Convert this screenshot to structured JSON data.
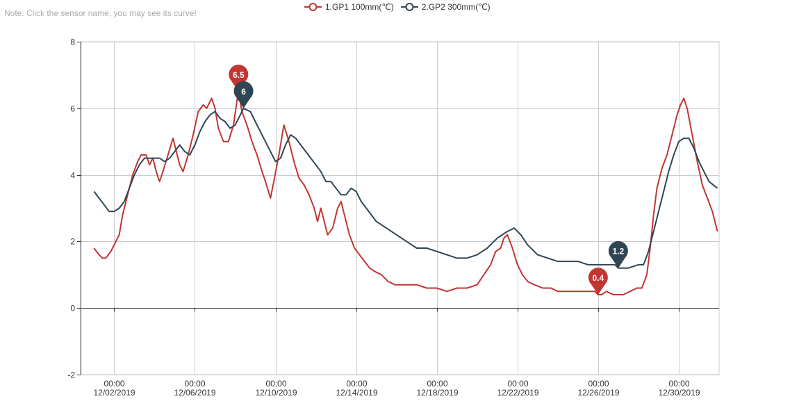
{
  "note": "Note: Click the sensor name, you may see its curve!",
  "legend": {
    "items": [
      {
        "label": "1.GP1 100mm(℃)",
        "color": "#c23531"
      },
      {
        "label": "2.GP2 300mm(℃)",
        "color": "#2f4554"
      }
    ]
  },
  "chart_data": {
    "type": "line",
    "title": "",
    "xlabel": "",
    "ylabel": "",
    "xlim": [
      "11/30/2019 08:00",
      "01/01/2020 00:00"
    ],
    "ylim": [
      -2,
      8
    ],
    "yticks": [
      -2,
      0,
      2,
      4,
      6,
      8
    ],
    "xticks": [
      {
        "date": "12/02/2019 00:00",
        "time": "00:00",
        "day": "12/02/2019"
      },
      {
        "date": "12/06/2019 00:00",
        "time": "00:00",
        "day": "12/06/2019"
      },
      {
        "date": "12/10/2019 00:00",
        "time": "00:00",
        "day": "12/10/2019"
      },
      {
        "date": "12/14/2019 00:00",
        "time": "00:00",
        "day": "12/14/2019"
      },
      {
        "date": "12/18/2019 00:00",
        "time": "00:00",
        "day": "12/18/2019"
      },
      {
        "date": "12/22/2019 00:00",
        "time": "00:00",
        "day": "12/22/2019"
      },
      {
        "date": "12/26/2019 00:00",
        "time": "00:00",
        "day": "12/26/2019"
      },
      {
        "date": "12/30/2019 00:00",
        "time": "00:00",
        "day": "12/30/2019"
      }
    ],
    "grid": true,
    "legend_position": "top-center",
    "series": [
      {
        "name": "1.GP1 100mm(℃)",
        "color": "#c23531",
        "points": [
          [
            "12/01/2019 00:00",
            1.8
          ],
          [
            "12/01/2019 06:00",
            1.6
          ],
          [
            "12/01/2019 10:00",
            1.5
          ],
          [
            "12/01/2019 14:00",
            1.5
          ],
          [
            "12/01/2019 20:00",
            1.7
          ],
          [
            "12/02/2019 02:00",
            2.0
          ],
          [
            "12/02/2019 06:00",
            2.2
          ],
          [
            "12/02/2019 10:00",
            2.8
          ],
          [
            "12/02/2019 16:00",
            3.4
          ],
          [
            "12/02/2019 22:00",
            4.0
          ],
          [
            "12/03/2019 04:00",
            4.4
          ],
          [
            "12/03/2019 08:00",
            4.6
          ],
          [
            "12/03/2019 14:00",
            4.6
          ],
          [
            "12/03/2019 18:00",
            4.3
          ],
          [
            "12/03/2019 22:00",
            4.5
          ],
          [
            "12/04/2019 02:00",
            4.1
          ],
          [
            "12/04/2019 06:00",
            3.8
          ],
          [
            "12/04/2019 10:00",
            4.1
          ],
          [
            "12/04/2019 16:00",
            4.6
          ],
          [
            "12/04/2019 22:00",
            5.1
          ],
          [
            "12/05/2019 02:00",
            4.7
          ],
          [
            "12/05/2019 06:00",
            4.3
          ],
          [
            "12/05/2019 10:00",
            4.1
          ],
          [
            "12/05/2019 16:00",
            4.6
          ],
          [
            "12/05/2019 22:00",
            5.2
          ],
          [
            "12/06/2019 04:00",
            5.9
          ],
          [
            "12/06/2019 10:00",
            6.1
          ],
          [
            "12/06/2019 14:00",
            6.0
          ],
          [
            "12/06/2019 20:00",
            6.3
          ],
          [
            "12/07/2019 00:00",
            6.0
          ],
          [
            "12/07/2019 04:00",
            5.4
          ],
          [
            "12/07/2019 10:00",
            5.0
          ],
          [
            "12/07/2019 16:00",
            5.0
          ],
          [
            "12/07/2019 22:00",
            5.5
          ],
          [
            "12/08/2019 02:00",
            6.2
          ],
          [
            "12/08/2019 04:00",
            6.5
          ],
          [
            "12/08/2019 08:00",
            5.9
          ],
          [
            "12/08/2019 14:00",
            5.5
          ],
          [
            "12/08/2019 20:00",
            5.0
          ],
          [
            "12/09/2019 02:00",
            4.6
          ],
          [
            "12/09/2019 08:00",
            4.1
          ],
          [
            "12/09/2019 12:00",
            3.8
          ],
          [
            "12/09/2019 18:00",
            3.3
          ],
          [
            "12/09/2019 22:00",
            3.8
          ],
          [
            "12/10/2019 04:00",
            4.6
          ],
          [
            "12/10/2019 10:00",
            5.5
          ],
          [
            "12/10/2019 16:00",
            5.0
          ],
          [
            "12/10/2019 22:00",
            4.4
          ],
          [
            "12/11/2019 04:00",
            3.9
          ],
          [
            "12/11/2019 10:00",
            3.7
          ],
          [
            "12/11/2019 16:00",
            3.4
          ],
          [
            "12/11/2019 22:00",
            3.0
          ],
          [
            "12/12/2019 02:00",
            2.6
          ],
          [
            "12/12/2019 06:00",
            3.0
          ],
          [
            "12/12/2019 10:00",
            2.6
          ],
          [
            "12/12/2019 14:00",
            2.2
          ],
          [
            "12/12/2019 20:00",
            2.4
          ],
          [
            "12/13/2019 02:00",
            3.0
          ],
          [
            "12/13/2019 06:00",
            3.2
          ],
          [
            "12/13/2019 10:00",
            2.8
          ],
          [
            "12/13/2019 16:00",
            2.2
          ],
          [
            "12/13/2019 22:00",
            1.8
          ],
          [
            "12/14/2019 04:00",
            1.6
          ],
          [
            "12/14/2019 10:00",
            1.4
          ],
          [
            "12/14/2019 16:00",
            1.2
          ],
          [
            "12/14/2019 22:00",
            1.1
          ],
          [
            "12/15/2019 06:00",
            1.0
          ],
          [
            "12/15/2019 14:00",
            0.8
          ],
          [
            "12/15/2019 22:00",
            0.7
          ],
          [
            "12/16/2019 12:00",
            0.7
          ],
          [
            "12/17/2019 00:00",
            0.7
          ],
          [
            "12/17/2019 12:00",
            0.6
          ],
          [
            "12/18/2019 00:00",
            0.6
          ],
          [
            "12/18/2019 12:00",
            0.5
          ],
          [
            "12/19/2019 00:00",
            0.6
          ],
          [
            "12/19/2019 12:00",
            0.6
          ],
          [
            "12/20/2019 00:00",
            0.7
          ],
          [
            "12/20/2019 08:00",
            1.0
          ],
          [
            "12/20/2019 16:00",
            1.3
          ],
          [
            "12/20/2019 22:00",
            1.7
          ],
          [
            "12/21/2019 04:00",
            1.8
          ],
          [
            "12/21/2019 08:00",
            2.1
          ],
          [
            "12/21/2019 12:00",
            2.2
          ],
          [
            "12/21/2019 18:00",
            1.8
          ],
          [
            "12/22/2019 00:00",
            1.3
          ],
          [
            "12/22/2019 06:00",
            1.0
          ],
          [
            "12/22/2019 12:00",
            0.8
          ],
          [
            "12/22/2019 20:00",
            0.7
          ],
          [
            "12/23/2019 06:00",
            0.6
          ],
          [
            "12/23/2019 16:00",
            0.6
          ],
          [
            "12/24/2019 00:00",
            0.5
          ],
          [
            "12/24/2019 12:00",
            0.5
          ],
          [
            "12/25/2019 00:00",
            0.5
          ],
          [
            "12/25/2019 12:00",
            0.5
          ],
          [
            "12/25/2019 20:00",
            0.5
          ],
          [
            "12/26/2019 00:00",
            0.4
          ],
          [
            "12/26/2019 04:00",
            0.4
          ],
          [
            "12/26/2019 10:00",
            0.5
          ],
          [
            "12/26/2019 18:00",
            0.4
          ],
          [
            "12/27/2019 06:00",
            0.4
          ],
          [
            "12/27/2019 14:00",
            0.5
          ],
          [
            "12/27/2019 22:00",
            0.6
          ],
          [
            "12/28/2019 04:00",
            0.6
          ],
          [
            "12/28/2019 10:00",
            1.0
          ],
          [
            "12/28/2019 14:00",
            1.8
          ],
          [
            "12/28/2019 18:00",
            2.8
          ],
          [
            "12/28/2019 22:00",
            3.6
          ],
          [
            "12/29/2019 04:00",
            4.2
          ],
          [
            "12/29/2019 10:00",
            4.6
          ],
          [
            "12/29/2019 16:00",
            5.2
          ],
          [
            "12/29/2019 22:00",
            5.8
          ],
          [
            "12/30/2019 02:00",
            6.1
          ],
          [
            "12/30/2019 06:00",
            6.3
          ],
          [
            "12/30/2019 10:00",
            6.0
          ],
          [
            "12/30/2019 16:00",
            5.2
          ],
          [
            "12/30/2019 22:00",
            4.4
          ],
          [
            "12/31/2019 04:00",
            3.7
          ],
          [
            "12/31/2019 10:00",
            3.3
          ],
          [
            "12/31/2019 16:00",
            2.9
          ],
          [
            "12/31/2019 22:00",
            2.3
          ]
        ],
        "marks": [
          {
            "label": "6.5",
            "x": "12/08/2019 04:00",
            "y": 6.5
          },
          {
            "label": "0.4",
            "x": "12/26/2019 00:00",
            "y": 0.4
          }
        ]
      },
      {
        "name": "2.GP2 300mm(℃)",
        "color": "#2f4554",
        "points": [
          [
            "12/01/2019 00:00",
            3.5
          ],
          [
            "12/01/2019 06:00",
            3.3
          ],
          [
            "12/01/2019 12:00",
            3.1
          ],
          [
            "12/01/2019 18:00",
            2.9
          ],
          [
            "12/02/2019 00:00",
            2.9
          ],
          [
            "12/02/2019 06:00",
            3.0
          ],
          [
            "12/02/2019 12:00",
            3.2
          ],
          [
            "12/02/2019 18:00",
            3.6
          ],
          [
            "12/03/2019 00:00",
            4.0
          ],
          [
            "12/03/2019 06:00",
            4.3
          ],
          [
            "12/03/2019 12:00",
            4.5
          ],
          [
            "12/03/2019 18:00",
            4.5
          ],
          [
            "12/04/2019 06:00",
            4.5
          ],
          [
            "12/04/2019 12:00",
            4.4
          ],
          [
            "12/04/2019 18:00",
            4.5
          ],
          [
            "12/05/2019 00:00",
            4.7
          ],
          [
            "12/05/2019 06:00",
            4.9
          ],
          [
            "12/05/2019 12:00",
            4.7
          ],
          [
            "12/05/2019 18:00",
            4.6
          ],
          [
            "12/06/2019 00:00",
            4.9
          ],
          [
            "12/06/2019 06:00",
            5.3
          ],
          [
            "12/06/2019 12:00",
            5.6
          ],
          [
            "12/06/2019 18:00",
            5.8
          ],
          [
            "12/07/2019 00:00",
            5.9
          ],
          [
            "12/07/2019 06:00",
            5.7
          ],
          [
            "12/07/2019 12:00",
            5.6
          ],
          [
            "12/07/2019 18:00",
            5.4
          ],
          [
            "12/08/2019 00:00",
            5.5
          ],
          [
            "12/08/2019 06:00",
            5.8
          ],
          [
            "12/08/2019 10:00",
            6.0
          ],
          [
            "12/08/2019 18:00",
            5.9
          ],
          [
            "12/09/2019 00:00",
            5.6
          ],
          [
            "12/09/2019 06:00",
            5.3
          ],
          [
            "12/09/2019 12:00",
            5.0
          ],
          [
            "12/09/2019 18:00",
            4.7
          ],
          [
            "12/10/2019 00:00",
            4.4
          ],
          [
            "12/10/2019 06:00",
            4.5
          ],
          [
            "12/10/2019 12:00",
            4.9
          ],
          [
            "12/10/2019 18:00",
            5.2
          ],
          [
            "12/11/2019 00:00",
            5.1
          ],
          [
            "12/11/2019 06:00",
            4.9
          ],
          [
            "12/11/2019 12:00",
            4.7
          ],
          [
            "12/11/2019 18:00",
            4.5
          ],
          [
            "12/12/2019 00:00",
            4.3
          ],
          [
            "12/12/2019 06:00",
            4.1
          ],
          [
            "12/12/2019 12:00",
            3.8
          ],
          [
            "12/12/2019 18:00",
            3.8
          ],
          [
            "12/13/2019 00:00",
            3.6
          ],
          [
            "12/13/2019 06:00",
            3.4
          ],
          [
            "12/13/2019 12:00",
            3.4
          ],
          [
            "12/13/2019 18:00",
            3.6
          ],
          [
            "12/14/2019 00:00",
            3.5
          ],
          [
            "12/14/2019 06:00",
            3.2
          ],
          [
            "12/14/2019 12:00",
            3.0
          ],
          [
            "12/14/2019 18:00",
            2.8
          ],
          [
            "12/15/2019 00:00",
            2.6
          ],
          [
            "12/15/2019 12:00",
            2.4
          ],
          [
            "12/16/2019 00:00",
            2.2
          ],
          [
            "12/16/2019 12:00",
            2.0
          ],
          [
            "12/17/2019 00:00",
            1.8
          ],
          [
            "12/17/2019 12:00",
            1.8
          ],
          [
            "12/18/2019 00:00",
            1.7
          ],
          [
            "12/18/2019 12:00",
            1.6
          ],
          [
            "12/19/2019 00:00",
            1.5
          ],
          [
            "12/19/2019 12:00",
            1.5
          ],
          [
            "12/20/2019 00:00",
            1.6
          ],
          [
            "12/20/2019 12:00",
            1.8
          ],
          [
            "12/21/2019 00:00",
            2.1
          ],
          [
            "12/21/2019 12:00",
            2.3
          ],
          [
            "12/21/2019 20:00",
            2.4
          ],
          [
            "12/22/2019 04:00",
            2.2
          ],
          [
            "12/22/2019 12:00",
            1.9
          ],
          [
            "12/23/2019 00:00",
            1.6
          ],
          [
            "12/23/2019 12:00",
            1.5
          ],
          [
            "12/24/2019 00:00",
            1.4
          ],
          [
            "12/24/2019 12:00",
            1.4
          ],
          [
            "12/25/2019 00:00",
            1.4
          ],
          [
            "12/25/2019 12:00",
            1.3
          ],
          [
            "12/26/2019 00:00",
            1.3
          ],
          [
            "12/26/2019 12:00",
            1.3
          ],
          [
            "12/26/2019 20:00",
            1.3
          ],
          [
            "12/27/2019 00:00",
            1.2
          ],
          [
            "12/27/2019 12:00",
            1.2
          ],
          [
            "12/28/2019 00:00",
            1.3
          ],
          [
            "12/28/2019 06:00",
            1.3
          ],
          [
            "12/28/2019 12:00",
            1.7
          ],
          [
            "12/28/2019 18:00",
            2.3
          ],
          [
            "12/29/2019 00:00",
            2.9
          ],
          [
            "12/29/2019 06:00",
            3.5
          ],
          [
            "12/29/2019 12:00",
            4.1
          ],
          [
            "12/29/2019 18:00",
            4.6
          ],
          [
            "12/30/2019 00:00",
            5.0
          ],
          [
            "12/30/2019 06:00",
            5.1
          ],
          [
            "12/30/2019 12:00",
            5.1
          ],
          [
            "12/30/2019 18:00",
            4.8
          ],
          [
            "12/31/2019 00:00",
            4.4
          ],
          [
            "12/31/2019 06:00",
            4.1
          ],
          [
            "12/31/2019 12:00",
            3.8
          ],
          [
            "12/31/2019 22:00",
            3.6
          ]
        ],
        "marks": [
          {
            "label": "6",
            "x": "12/08/2019 10:00",
            "y": 6.0
          },
          {
            "label": "1.2",
            "x": "12/27/2019 00:00",
            "y": 1.2
          }
        ]
      }
    ]
  }
}
